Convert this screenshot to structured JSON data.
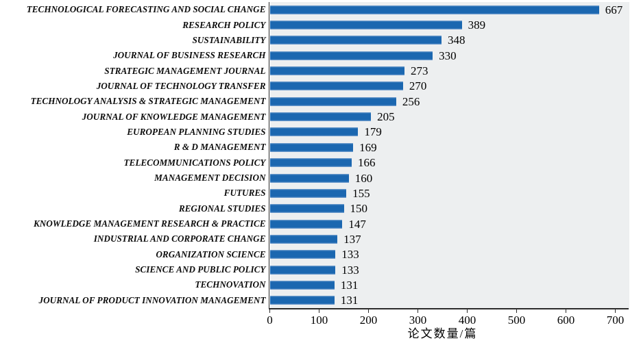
{
  "chart_data": {
    "type": "bar",
    "orientation": "horizontal",
    "title": "",
    "xlabel": "论文数量/篇",
    "ylabel": "",
    "categories": [
      "TECHNOLOGICAL FORECASTING AND SOCIAL CHANGE",
      "RESEARCH POLICY",
      "SUSTAINABILITY",
      "JOURNAL OF BUSINESS RESEARCH",
      "STRATEGIC MANAGEMENT JOURNAL",
      "JOURNAL OF TECHNOLOGY TRANSFER",
      "TECHNOLOGY ANALYSIS & STRATEGIC MANAGEMENT",
      "JOURNAL OF KNOWLEDGE MANAGEMENT",
      "EUROPEAN PLANNING STUDIES",
      "R & D MANAGEMENT",
      "TELECOMMUNICATIONS POLICY",
      "MANAGEMENT DECISION",
      "FUTURES",
      "REGIONAL STUDIES",
      "KNOWLEDGE MANAGEMENT RESEARCH & PRACTICE",
      "INDUSTRIAL AND CORPORATE CHANGE",
      "ORGANIZATION SCIENCE",
      "SCIENCE AND PUBLIC POLICY",
      "TECHNOVATION",
      "JOURNAL OF PRODUCT INNOVATION MANAGEMENT"
    ],
    "values": [
      667,
      389,
      348,
      330,
      273,
      270,
      256,
      205,
      179,
      169,
      166,
      160,
      155,
      150,
      147,
      137,
      133,
      133,
      131,
      131
    ],
    "data_labels_shown": true,
    "xticks": [
      "0",
      "100",
      "200",
      "300",
      "400",
      "500",
      "600",
      "700"
    ],
    "xtick_values": [
      0,
      100,
      200,
      300,
      400,
      500,
      600,
      700
    ],
    "xlim": [
      0,
      728
    ],
    "grid": "off",
    "legend": "none",
    "colors": {
      "bar": "#1b67b0",
      "bar_highlight": "#7ea6d2",
      "plot_background": "#edeff0",
      "axis": "#2b2b2b",
      "text": "#000000"
    }
  }
}
